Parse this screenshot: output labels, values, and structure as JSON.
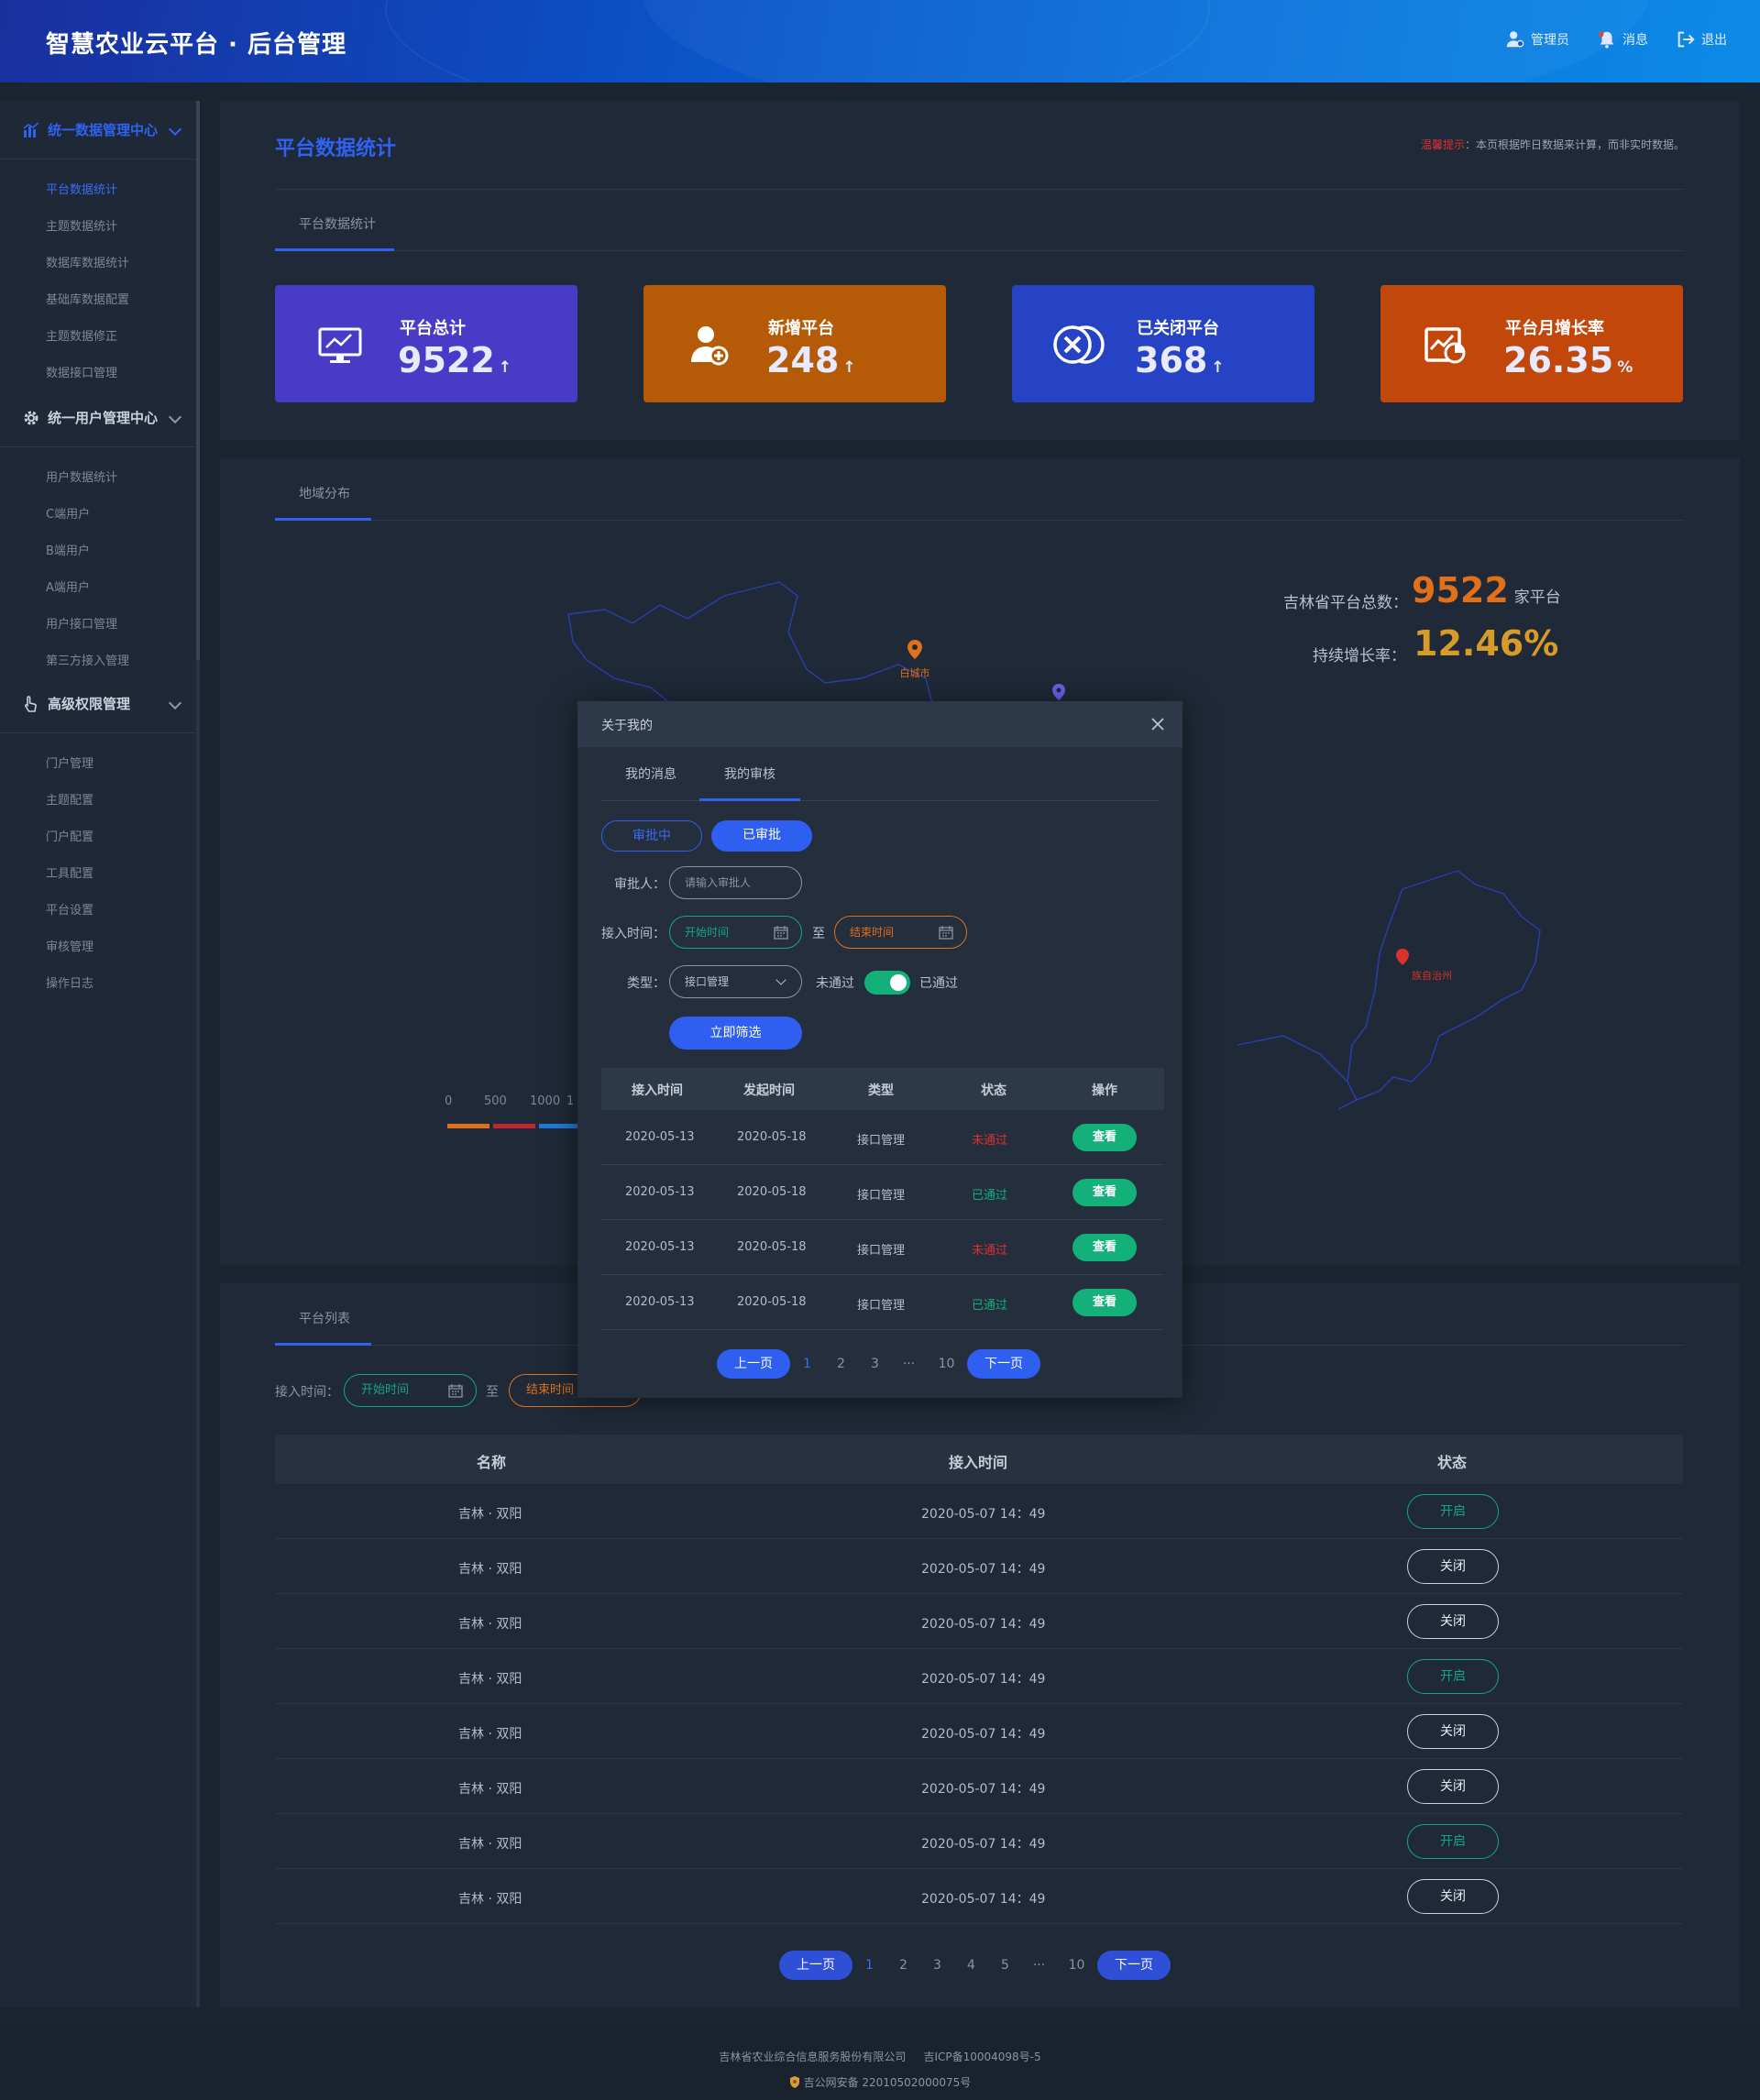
{
  "header": {
    "title": "智慧农业云平台 · 后台管理",
    "nav": [
      {
        "label": "管理员",
        "icon": "user-icon"
      },
      {
        "label": "消息",
        "icon": "bell-icon"
      },
      {
        "label": "退出",
        "icon": "logout-icon"
      }
    ]
  },
  "sidebar": {
    "groups": [
      {
        "label": "统一数据管理中心",
        "icon": "chart-bar-icon",
        "color": "#2f62f0",
        "items": [
          "平台数据统计",
          "主题数据统计",
          "数据库数据统计",
          "基础库数据配置",
          "主题数据修正",
          "数据接口管理"
        ]
      },
      {
        "label": "统一用户管理中心",
        "icon": "gear-icon",
        "color": "#c9d1dc",
        "items": [
          "用户数据统计",
          "C端用户",
          "B端用户",
          "A端用户",
          "用户接口管理",
          "第三方接入管理"
        ]
      },
      {
        "label": "高级权限管理",
        "icon": "pointer-icon",
        "color": "#c9d1dc",
        "items": [
          "门户管理",
          "主题配置",
          "门户配置",
          "工具配置",
          "平台设置",
          "审核管理",
          "操作日志"
        ]
      }
    ]
  },
  "stats_panel": {
    "title": "平台数据统计",
    "notice_red": "温馨提示",
    "notice_text": "：本页根据昨日数据来计算，而非实时数据。",
    "tab": "平台数据统计",
    "cards": [
      {
        "label": "平台总计",
        "value": "9522",
        "unit": "↑",
        "color": "#4a3bc7",
        "icon": "monitor-chart-icon"
      },
      {
        "label": "新增平台",
        "value": "248",
        "unit": "↑",
        "color": "#b55a06",
        "icon": "user-add-icon"
      },
      {
        "label": "已关闭平台",
        "value": "368",
        "unit": "↑",
        "color": "#2543c4",
        "icon": "circle-close-icon"
      },
      {
        "label": "平台月增长率",
        "value": "26.35",
        "unit": "%",
        "color": "#c2470a",
        "icon": "chart-pie-icon"
      }
    ]
  },
  "map_panel": {
    "tab": "地域分布",
    "total_label": "吉林省平台总数：",
    "total_value": "9522",
    "total_unit": "家平台",
    "growth_label": "持续增长率：",
    "growth_value": "12.46%",
    "cities": [
      "白城市",
      "族自治州"
    ],
    "legend_ticks": [
      "0",
      "500",
      "1000",
      "1"
    ],
    "legend_colors": [
      "#e0711a",
      "#c0262d",
      "#1e7ad8"
    ]
  },
  "list_panel": {
    "tab": "平台列表",
    "filter_label": "接入时间：",
    "start_placeholder": "开始时间",
    "to": "至",
    "end_placeholder": "结束时间",
    "columns": [
      "名称",
      "接入时间",
      "状态"
    ],
    "rows": [
      {
        "name": "吉林 · 双阳",
        "time": "2020-05-07  14：49",
        "status": "开启"
      },
      {
        "name": "吉林 · 双阳",
        "time": "2020-05-07  14：49",
        "status": "关闭"
      },
      {
        "name": "吉林 · 双阳",
        "time": "2020-05-07  14：49",
        "status": "关闭"
      },
      {
        "name": "吉林 · 双阳",
        "time": "2020-05-07  14：49",
        "status": "开启"
      },
      {
        "name": "吉林 · 双阳",
        "time": "2020-05-07  14：49",
        "status": "关闭"
      },
      {
        "name": "吉林 · 双阳",
        "time": "2020-05-07  14：49",
        "status": "关闭"
      },
      {
        "name": "吉林 · 双阳",
        "time": "2020-05-07  14：49",
        "status": "开启"
      },
      {
        "name": "吉林 · 双阳",
        "time": "2020-05-07  14：49",
        "status": "关闭"
      }
    ],
    "pager": {
      "prev": "上一页",
      "next": "下一页",
      "pages": [
        "1",
        "2",
        "3",
        "4",
        "5",
        "···",
        "10"
      ]
    }
  },
  "modal": {
    "title": "关于我的",
    "tabs": [
      "我的消息",
      "我的审核"
    ],
    "toggle": [
      "审批中",
      "已审批"
    ],
    "approver_label": "审批人：",
    "approver_placeholder": "请输入审批人",
    "time_label": "接入时间：",
    "start_placeholder": "开始时间",
    "to": "至",
    "end_placeholder": "结束时间",
    "type_label": "类型：",
    "type_value": "接口管理",
    "switch_off": "未通过",
    "switch_on": "已通过",
    "filter_button": "立即筛选",
    "columns": [
      "接入时间",
      "发起时间",
      "类型",
      "状态",
      "操作"
    ],
    "rows": [
      {
        "t1": "2020-05-13",
        "t2": "2020-05-18",
        "type": "接口管理",
        "status": "未通过",
        "action": "查看"
      },
      {
        "t1": "2020-05-13",
        "t2": "2020-05-18",
        "type": "接口管理",
        "status": "已通过",
        "action": "查看"
      },
      {
        "t1": "2020-05-13",
        "t2": "2020-05-18",
        "type": "接口管理",
        "status": "未通过",
        "action": "查看"
      },
      {
        "t1": "2020-05-13",
        "t2": "2020-05-18",
        "type": "接口管理",
        "status": "已通过",
        "action": "查看"
      }
    ],
    "pager": {
      "prev": "上一页",
      "next": "下一页",
      "pages": [
        "1",
        "2",
        "3",
        "···",
        "10"
      ]
    }
  },
  "footer": {
    "company": "吉林省农业综合信息服务股份有限公司",
    "icp": "吉ICP备10004098号-5",
    "police": "吉公网安备 22010502000075号"
  }
}
